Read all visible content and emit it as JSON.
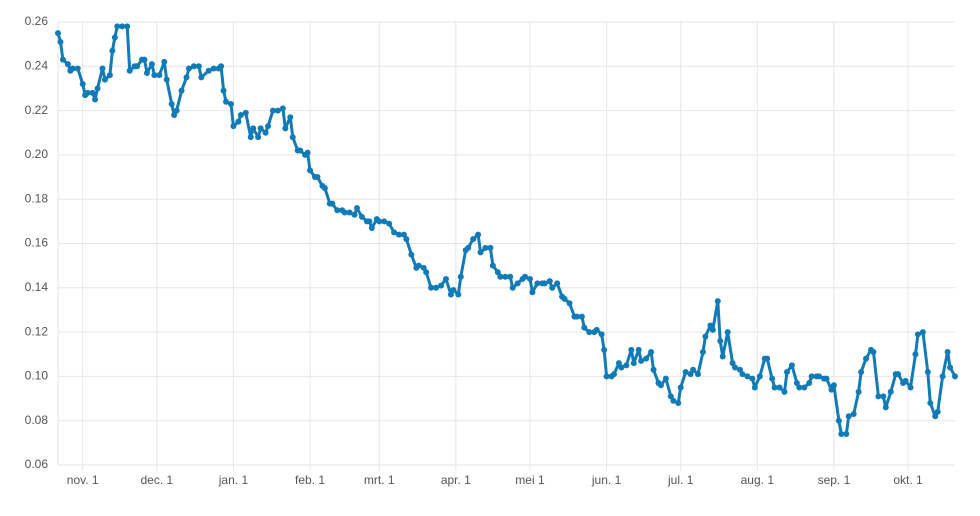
{
  "chart_data": {
    "type": "line",
    "x": [
      0,
      1,
      2,
      4,
      5,
      6,
      8,
      10,
      11,
      12,
      14,
      15,
      16,
      18,
      19,
      21,
      22,
      23,
      24,
      26,
      28,
      29,
      31,
      32,
      34,
      35,
      36,
      38,
      39,
      41,
      43,
      44,
      46,
      47,
      48,
      50,
      52,
      53,
      55,
      57,
      58,
      61,
      63,
      65,
      66,
      67,
      68,
      70,
      71,
      73,
      74,
      76,
      78,
      79,
      81,
      82,
      84,
      85,
      87,
      89,
      91,
      92,
      94,
      95,
      97,
      98,
      100,
      101,
      102,
      104,
      105,
      107,
      108,
      110,
      111,
      113,
      115,
      116,
      118,
      120,
      121,
      123,
      125,
      126,
      127,
      129,
      130,
      132,
      134,
      136,
      138,
      140,
      141,
      143,
      145,
      146,
      148,
      149,
      151,
      153,
      155,
      157,
      159,
      160,
      162,
      163,
      165,
      166,
      168,
      170,
      171,
      173,
      175,
      176,
      178,
      179,
      181,
      183,
      184,
      186,
      188,
      189,
      191,
      192,
      194,
      196,
      197,
      199,
      200,
      202,
      204,
      205,
      207,
      209,
      210,
      212,
      213,
      215,
      217,
      218,
      220,
      221,
      222,
      224,
      225,
      227,
      228,
      230,
      232,
      233,
      235,
      236,
      238,
      240,
      241,
      243,
      244,
      246,
      248,
      249,
      251,
      252,
      254,
      256,
      257,
      259,
      261,
      262,
      264,
      265,
      267,
      268,
      269,
      271,
      273,
      274,
      276,
      277,
      279,
      281,
      282,
      284,
      286,
      287,
      289,
      290,
      292,
      294,
      295,
      297,
      299,
      300,
      302,
      304,
      305,
      307,
      308,
      310,
      311,
      313,
      314,
      316,
      317,
      319,
      320,
      322,
      324,
      325,
      327,
      329,
      330,
      332,
      334,
      335,
      337,
      339,
      340,
      342,
      343,
      345,
      347,
      348,
      350,
      352,
      353,
      355,
      356,
      358,
      360,
      361,
      363
    ],
    "values": [
      0.255,
      0.251,
      0.243,
      0.241,
      0.238,
      0.239,
      0.239,
      0.232,
      0.227,
      0.228,
      0.228,
      0.225,
      0.23,
      0.239,
      0.234,
      0.236,
      0.247,
      0.253,
      0.258,
      0.258,
      0.258,
      0.238,
      0.24,
      0.24,
      0.243,
      0.243,
      0.237,
      0.241,
      0.236,
      0.236,
      0.242,
      0.234,
      0.223,
      0.218,
      0.22,
      0.229,
      0.235,
      0.239,
      0.24,
      0.24,
      0.235,
      0.238,
      0.239,
      0.239,
      0.24,
      0.229,
      0.224,
      0.223,
      0.213,
      0.215,
      0.218,
      0.219,
      0.208,
      0.212,
      0.208,
      0.212,
      0.21,
      0.213,
      0.22,
      0.22,
      0.221,
      0.212,
      0.217,
      0.208,
      0.202,
      0.202,
      0.2,
      0.201,
      0.193,
      0.19,
      0.19,
      0.186,
      0.185,
      0.178,
      0.178,
      0.175,
      0.175,
      0.174,
      0.174,
      0.173,
      0.176,
      0.172,
      0.17,
      0.17,
      0.167,
      0.171,
      0.17,
      0.17,
      0.169,
      0.165,
      0.164,
      0.164,
      0.162,
      0.155,
      0.149,
      0.15,
      0.149,
      0.147,
      0.14,
      0.14,
      0.141,
      0.144,
      0.137,
      0.139,
      0.137,
      0.145,
      0.157,
      0.158,
      0.162,
      0.164,
      0.156,
      0.158,
      0.158,
      0.15,
      0.147,
      0.145,
      0.145,
      0.145,
      0.14,
      0.142,
      0.144,
      0.145,
      0.144,
      0.138,
      0.142,
      0.142,
      0.142,
      0.143,
      0.14,
      0.142,
      0.136,
      0.135,
      0.133,
      0.127,
      0.127,
      0.127,
      0.122,
      0.12,
      0.12,
      0.121,
      0.119,
      0.112,
      0.1,
      0.1,
      0.101,
      0.106,
      0.104,
      0.105,
      0.112,
      0.106,
      0.112,
      0.107,
      0.108,
      0.111,
      0.103,
      0.097,
      0.096,
      0.099,
      0.091,
      0.089,
      0.088,
      0.095,
      0.102,
      0.101,
      0.103,
      0.101,
      0.111,
      0.118,
      0.123,
      0.121,
      0.134,
      0.116,
      0.109,
      0.12,
      0.106,
      0.104,
      0.103,
      0.101,
      0.1,
      0.099,
      0.095,
      0.1,
      0.108,
      0.108,
      0.099,
      0.095,
      0.095,
      0.093,
      0.102,
      0.105,
      0.097,
      0.095,
      0.095,
      0.097,
      0.1,
      0.1,
      0.1,
      0.099,
      0.099,
      0.094,
      0.096,
      0.08,
      0.074,
      0.074,
      0.082,
      0.083,
      0.093,
      0.102,
      0.108,
      0.112,
      0.111,
      0.091,
      0.091,
      0.086,
      0.093,
      0.101,
      0.101,
      0.097,
      0.098,
      0.095,
      0.11,
      0.119,
      0.12,
      0.102,
      0.088,
      0.082,
      0.084,
      0.1,
      0.111,
      0.104,
      0.1
    ],
    "color": "#117bb8",
    "xlim": [
      0,
      363
    ],
    "xticks": [
      {
        "value": 10,
        "label": "nov. 1"
      },
      {
        "value": 40,
        "label": "dec. 1"
      },
      {
        "value": 71,
        "label": "jan. 1"
      },
      {
        "value": 102,
        "label": "feb. 1"
      },
      {
        "value": 130,
        "label": "mrt. 1"
      },
      {
        "value": 161,
        "label": "apr. 1"
      },
      {
        "value": 191,
        "label": "mei 1"
      },
      {
        "value": 222,
        "label": "jun. 1"
      },
      {
        "value": 252,
        "label": "jul. 1"
      },
      {
        "value": 283,
        "label": "aug. 1"
      },
      {
        "value": 314,
        "label": "sep. 1"
      },
      {
        "value": 344,
        "label": "okt. 1"
      }
    ],
    "ylim": [
      0.06,
      0.26
    ],
    "yticks": [
      0.06,
      0.08,
      {
        "value": 0.1,
        "label": "0.10"
      },
      0.12,
      0.14,
      0.16,
      0.18,
      {
        "value": 0.2,
        "label": "0.20"
      },
      0.22,
      0.24,
      0.26
    ],
    "grid": true
  }
}
